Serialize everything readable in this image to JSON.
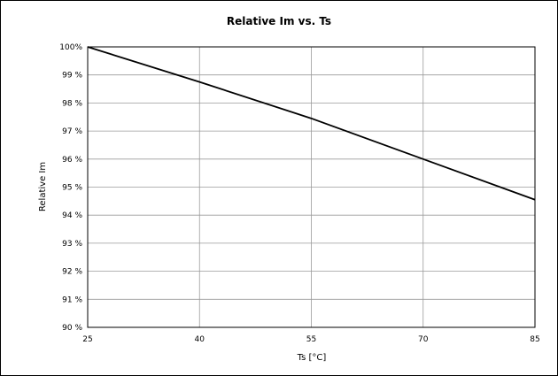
{
  "chart_data": {
    "type": "line",
    "title": "Relative Im vs. Ts",
    "xlabel": "Ts [°C]",
    "ylabel": "Relative Im",
    "xlim": [
      25,
      85
    ],
    "ylim": [
      90,
      100
    ],
    "x_ticks": [
      25,
      40,
      55,
      70,
      85
    ],
    "x_tick_labels": [
      "25",
      "40",
      "55",
      "70",
      "85"
    ],
    "y_ticks": [
      90,
      91,
      92,
      93,
      94,
      95,
      96,
      97,
      98,
      99,
      100
    ],
    "y_tick_labels": [
      "90 %",
      "91 %",
      "92 %",
      "93 %",
      "94 %",
      "95 %",
      "96 %",
      "97 %",
      "98 %",
      "99 %",
      "100%"
    ],
    "grid": true,
    "legend": "none",
    "series": [
      {
        "x": [
          25,
          40,
          55,
          70,
          85
        ],
        "values": [
          100,
          98.75,
          97.45,
          96.0,
          94.55
        ]
      }
    ]
  }
}
